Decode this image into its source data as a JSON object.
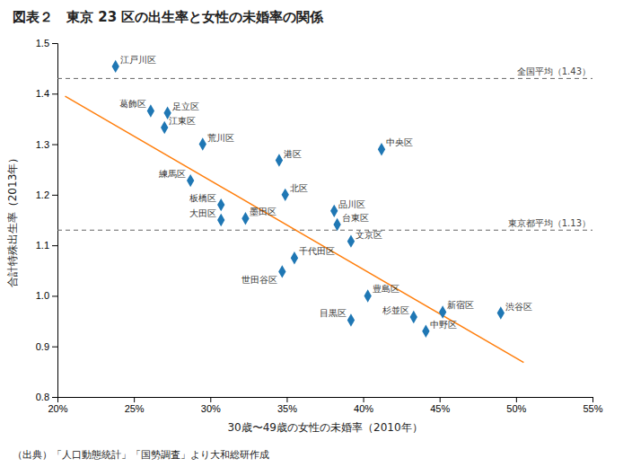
{
  "chart_data": {
    "type": "scatter",
    "title": "図表２　東京 23 区の出生率と女性の未婚率の関係",
    "x_label": "30歳〜49歳の女性の未婚率（2010年）",
    "y_label": "合計特殊出生率（2013年）",
    "footnote": "（出典）「人口動態統計」「国勢調査」より大和総研作成",
    "xlim": [
      0.2,
      0.55
    ],
    "ylim": [
      0.8,
      1.5
    ],
    "xticks": [
      {
        "value": 0.2,
        "label": "20%"
      },
      {
        "value": 0.25,
        "label": "25%"
      },
      {
        "value": 0.3,
        "label": "30%"
      },
      {
        "value": 0.35,
        "label": "35%"
      },
      {
        "value": 0.4,
        "label": "40%"
      },
      {
        "value": 0.45,
        "label": "45%"
      },
      {
        "value": 0.5,
        "label": "50%"
      },
      {
        "value": 0.55,
        "label": "55%"
      }
    ],
    "yticks": [
      0.8,
      0.9,
      {
        "value": 1.0,
        "label": "1.0"
      },
      1.1,
      1.2,
      1.3,
      1.4,
      1.5
    ],
    "grid": false,
    "marker": "diamond",
    "labels": [
      "江戸川区",
      "葛飾区",
      "足立区",
      "江東区",
      "荒川区",
      "練馬区",
      "板橋区",
      "大田区",
      "墨田区",
      "港区",
      "北区",
      "品川区",
      "台東区",
      "文京区",
      "千代田区",
      "世田谷区",
      "中央区",
      "豊島区",
      "目黒区",
      "杉並区",
      "中野区",
      "新宿区",
      "渋谷区"
    ],
    "x": [
      0.238,
      0.261,
      0.272,
      0.27,
      0.295,
      0.287,
      0.307,
      0.307,
      0.323,
      0.345,
      0.349,
      0.381,
      0.383,
      0.392,
      0.355,
      0.347,
      0.412,
      0.403,
      0.392,
      0.433,
      0.441,
      0.452,
      0.49
    ],
    "values": [
      1.454,
      1.366,
      1.362,
      1.333,
      1.3,
      1.228,
      1.18,
      1.15,
      1.153,
      1.268,
      1.2,
      1.168,
      1.141,
      1.108,
      1.075,
      1.048,
      1.29,
      1.0,
      0.952,
      0.958,
      0.93,
      0.968,
      0.966
    ],
    "trendline": {
      "x": [
        0.205,
        0.505
      ],
      "values": [
        1.395,
        0.868
      ]
    },
    "reference_lines": [
      {
        "value": 1.43,
        "label": "全国平均（1.43）",
        "line_style": "dashed"
      },
      {
        "value": 1.13,
        "label": "東京都平均（1.13）",
        "line_style": "dashed"
      }
    ]
  }
}
